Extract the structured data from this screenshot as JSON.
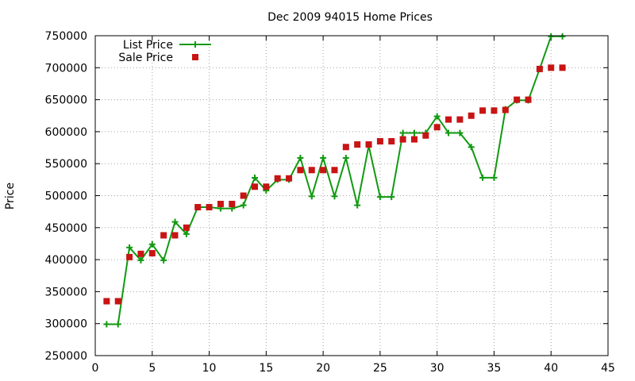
{
  "chart_data": {
    "type": "line",
    "title": "Dec 2009 94015 Home Prices",
    "xlabel": "",
    "ylabel": "Price",
    "xlim": [
      0,
      45
    ],
    "ylim": [
      250000,
      750000
    ],
    "x_ticks": [
      0,
      5,
      10,
      15,
      20,
      25,
      30,
      35,
      40,
      45
    ],
    "y_ticks": [
      250000,
      300000,
      350000,
      400000,
      450000,
      500000,
      550000,
      600000,
      650000,
      700000,
      750000
    ],
    "grid": true,
    "legend_position": "top-left",
    "series": [
      {
        "name": "List Price",
        "style": "line-plus",
        "color": "#109a10",
        "x": [
          1,
          2,
          3,
          4,
          5,
          6,
          7,
          8,
          9,
          10,
          11,
          12,
          13,
          14,
          15,
          16,
          17,
          18,
          19,
          20,
          21,
          22,
          23,
          24,
          25,
          26,
          27,
          28,
          29,
          30,
          31,
          32,
          33,
          34,
          35,
          36,
          37,
          38,
          39,
          40,
          41
        ],
        "y": [
          299000,
          299000,
          419000,
          399000,
          424000,
          399000,
          459000,
          440000,
          482000,
          482000,
          480000,
          480000,
          485000,
          528000,
          508000,
          525000,
          525000,
          559000,
          499000,
          559000,
          499000,
          559000,
          485000,
          578000,
          498000,
          498000,
          598000,
          598000,
          598000,
          624000,
          598000,
          598000,
          576000,
          528000,
          528000,
          635000,
          649000,
          649000,
          698000,
          749000,
          749000
        ]
      },
      {
        "name": "Sale Price",
        "style": "square",
        "color": "#c81414",
        "x": [
          1,
          2,
          3,
          4,
          5,
          6,
          7,
          8,
          9,
          10,
          11,
          12,
          13,
          14,
          15,
          16,
          17,
          18,
          19,
          20,
          21,
          22,
          23,
          24,
          25,
          26,
          27,
          28,
          29,
          30,
          31,
          32,
          33,
          34,
          35,
          36,
          37,
          38,
          39,
          40,
          41
        ],
        "y": [
          335000,
          335000,
          404000,
          409000,
          410000,
          438000,
          438000,
          450000,
          482000,
          482000,
          487000,
          487000,
          500000,
          514000,
          514000,
          527000,
          527000,
          540000,
          540000,
          540000,
          540000,
          576000,
          580000,
          580000,
          585000,
          585000,
          588000,
          588000,
          594000,
          607000,
          619000,
          619000,
          625000,
          633000,
          633000,
          634000,
          650000,
          650000,
          698000,
          700000,
          700000
        ]
      }
    ]
  }
}
